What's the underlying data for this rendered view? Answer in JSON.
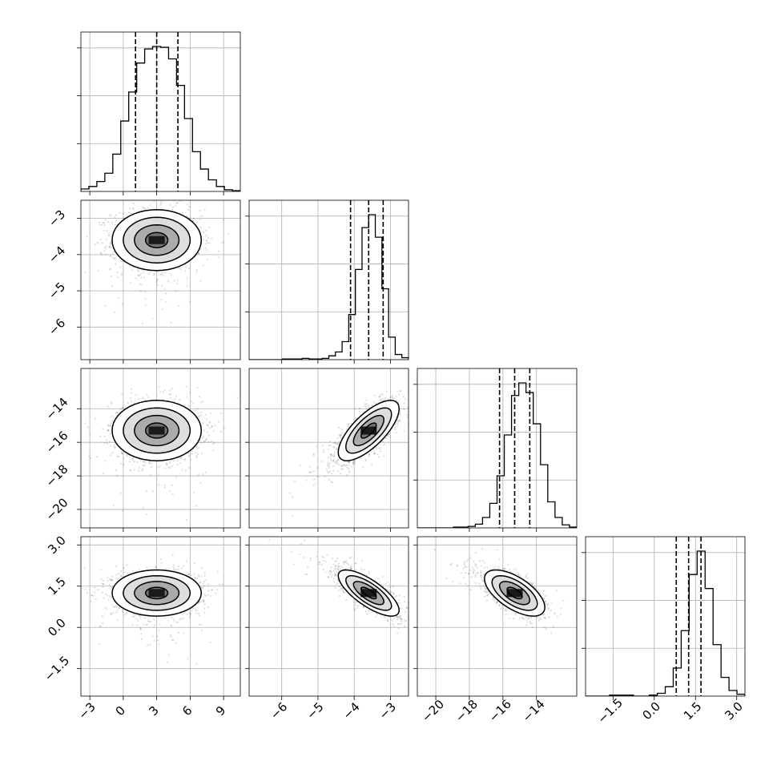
{
  "chart_data": {
    "type": "corner",
    "n_params": 4,
    "params": [
      {
        "range": [
          -3.8,
          10.5
        ],
        "ticks": [
          -3,
          0,
          3,
          6,
          9
        ],
        "tick_labels": [
          "−3",
          "0",
          "3",
          "6",
          "9"
        ],
        "mean": 3.0,
        "sd": 2.0,
        "quantiles": [
          1.1,
          3.0,
          4.9
        ],
        "hist": [
          3,
          6,
          12,
          22,
          45,
          85,
          120,
          155,
          172,
          175,
          174,
          160,
          128,
          88,
          48,
          27,
          14,
          6,
          2,
          1
        ]
      },
      {
        "range": [
          -6.9,
          -2.5
        ],
        "ticks": [
          -6,
          -5,
          -4,
          -3
        ],
        "tick_labels": [
          "−6",
          "−5",
          "−4",
          "−3"
        ],
        "mean": -3.6,
        "sd": 0.42,
        "quantiles": [
          -4.1,
          -3.6,
          -3.2
        ],
        "hist": [
          0,
          0,
          0,
          0,
          0,
          1,
          1,
          1,
          2,
          1,
          1,
          2,
          6,
          12,
          28,
          70,
          140,
          205,
          225,
          190,
          110,
          35,
          8,
          3
        ]
      },
      {
        "range": [
          -21.1,
          -11.6
        ],
        "ticks": [
          -20,
          -18,
          -16,
          -14
        ],
        "tick_labels": [
          "−20",
          "−18",
          "−16",
          "−14"
        ],
        "mean": -15.3,
        "sd": 0.9,
        "quantiles": [
          -16.2,
          -15.3,
          -14.4
        ],
        "hist": [
          0,
          0,
          0,
          0,
          0,
          1,
          1,
          2,
          5,
          14,
          33,
          70,
          125,
          178,
          195,
          182,
          140,
          85,
          35,
          14,
          4,
          1
        ]
      },
      {
        "range": [
          -2.5,
          3.3
        ],
        "ticks": [
          -1.5,
          0.0,
          1.5,
          3.0
        ],
        "tick_labels": [
          "−1.5",
          "0.0",
          "1.5",
          "3.0"
        ],
        "mean": 1.25,
        "sd": 0.42,
        "quantiles": [
          0.8,
          1.25,
          1.7
        ],
        "hist": [
          0,
          0,
          0,
          1,
          1,
          1,
          0,
          0,
          1,
          3,
          10,
          30,
          70,
          130,
          155,
          115,
          55,
          20,
          6,
          2
        ]
      }
    ],
    "correlations": [
      [
        1,
        0,
        0,
        0
      ],
      [
        0,
        1,
        0.72,
        -0.75
      ],
      [
        0,
        0.72,
        1,
        -0.62
      ],
      [
        0,
        -0.75,
        -0.62,
        1
      ]
    ],
    "contour_levels": [
      0.5,
      1.0,
      1.5,
      2.0
    ],
    "grid": true
  }
}
